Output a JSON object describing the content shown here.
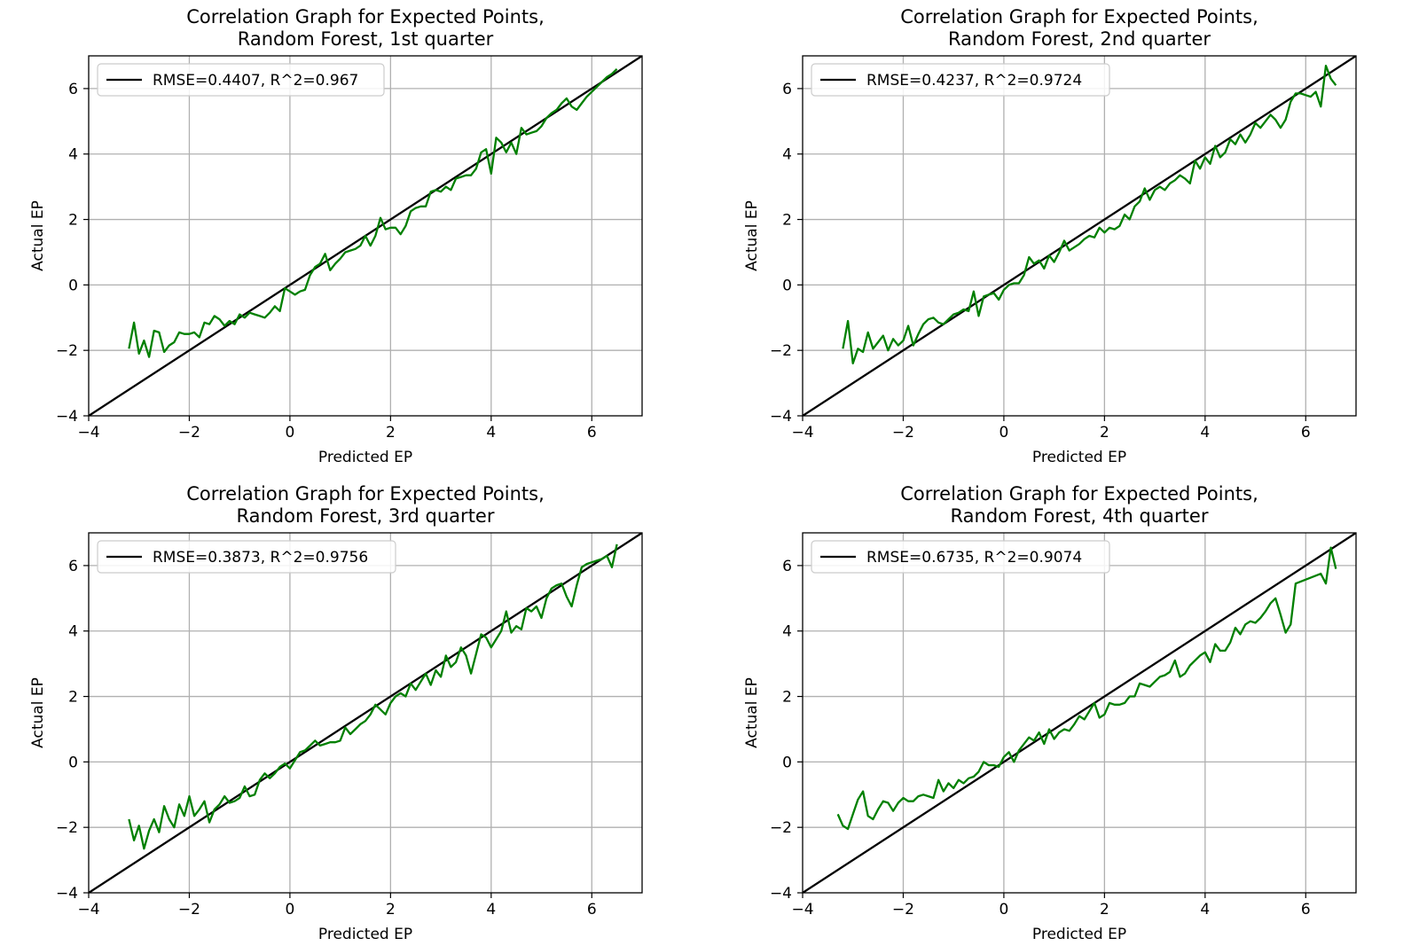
{
  "chart_data": [
    {
      "type": "line",
      "title": "Correlation Graph for Expected Points,\nRandom Forest, 1st quarter",
      "xlabel": "Predicted EP",
      "ylabel": "Actual EP",
      "xlim": [
        -4,
        7
      ],
      "ylim": [
        -4,
        7
      ],
      "xticks": [
        -4,
        -2,
        0,
        2,
        4,
        6
      ],
      "yticks": [
        -4,
        -2,
        0,
        2,
        4,
        6
      ],
      "grid": true,
      "legend_position": "top-left",
      "series": [
        {
          "name": "RMSE=0.4407, R^2=0.967",
          "color": "#000000",
          "role": "reference",
          "x": [
            -4,
            7
          ],
          "y": [
            -4,
            7
          ]
        },
        {
          "color": "#008000",
          "role": "data",
          "x": [
            -3.2,
            -3.1,
            -3.0,
            -2.9,
            -2.8,
            -2.7,
            -2.6,
            -2.5,
            -2.4,
            -2.3,
            -2.2,
            -2.1,
            -2.0,
            -1.9,
            -1.8,
            -1.7,
            -1.6,
            -1.5,
            -1.4,
            -1.3,
            -1.2,
            -1.1,
            -1.0,
            -0.9,
            -0.8,
            -0.7,
            -0.6,
            -0.5,
            -0.4,
            -0.3,
            -0.2,
            -0.1,
            0.0,
            0.1,
            0.2,
            0.3,
            0.4,
            0.5,
            0.6,
            0.7,
            0.8,
            0.9,
            1.0,
            1.1,
            1.2,
            1.3,
            1.4,
            1.5,
            1.6,
            1.7,
            1.8,
            1.9,
            2.0,
            2.1,
            2.2,
            2.3,
            2.4,
            2.5,
            2.6,
            2.7,
            2.8,
            2.9,
            3.0,
            3.1,
            3.2,
            3.3,
            3.4,
            3.5,
            3.6,
            3.7,
            3.8,
            3.9,
            4.0,
            4.1,
            4.2,
            4.3,
            4.4,
            4.5,
            4.6,
            4.7,
            4.8,
            4.9,
            5.0,
            5.1,
            5.2,
            5.3,
            5.4,
            5.5,
            5.6,
            5.7,
            5.8,
            5.9,
            6.0,
            6.1,
            6.2,
            6.3,
            6.4,
            6.5
          ],
          "y": [
            -1.95,
            -1.15,
            -2.1,
            -1.7,
            -2.2,
            -1.4,
            -1.45,
            -2.05,
            -1.85,
            -1.75,
            -1.45,
            -1.5,
            -1.5,
            -1.45,
            -1.6,
            -1.15,
            -1.2,
            -0.95,
            -1.05,
            -1.25,
            -1.1,
            -1.2,
            -0.9,
            -1.0,
            -0.85,
            -0.9,
            -0.95,
            -1.0,
            -0.85,
            -0.65,
            -0.8,
            -0.1,
            -0.2,
            -0.3,
            -0.2,
            -0.15,
            0.3,
            0.55,
            0.65,
            0.95,
            0.45,
            0.65,
            0.8,
            1.0,
            1.05,
            1.1,
            1.2,
            1.5,
            1.2,
            1.5,
            2.05,
            1.7,
            1.75,
            1.75,
            1.55,
            1.8,
            2.25,
            2.35,
            2.4,
            2.4,
            2.85,
            2.9,
            2.85,
            3.0,
            2.9,
            3.25,
            3.3,
            3.35,
            3.35,
            3.55,
            4.05,
            4.15,
            3.4,
            4.5,
            4.35,
            4.05,
            4.35,
            4.0,
            4.8,
            4.6,
            4.65,
            4.7,
            4.85,
            5.1,
            5.25,
            5.35,
            5.55,
            5.7,
            5.45,
            5.35,
            5.55,
            5.75,
            5.9,
            6.05,
            6.2,
            6.35,
            6.45,
            6.6
          ]
        }
      ]
    },
    {
      "type": "line",
      "title": "Correlation Graph for Expected Points,\nRandom Forest, 2nd quarter",
      "xlabel": "Predicted EP",
      "ylabel": "Actual EP",
      "xlim": [
        -4,
        7
      ],
      "ylim": [
        -4,
        7
      ],
      "xticks": [
        -4,
        -2,
        0,
        2,
        4,
        6
      ],
      "yticks": [
        -4,
        -2,
        0,
        2,
        4,
        6
      ],
      "grid": true,
      "legend_position": "top-left",
      "series": [
        {
          "name": "RMSE=0.4237, R^2=0.9724",
          "color": "#000000",
          "role": "reference",
          "x": [
            -4,
            7
          ],
          "y": [
            -4,
            7
          ]
        },
        {
          "color": "#008000",
          "role": "data",
          "x": [
            -3.2,
            -3.1,
            -3.0,
            -2.9,
            -2.8,
            -2.7,
            -2.6,
            -2.5,
            -2.4,
            -2.3,
            -2.2,
            -2.1,
            -2.0,
            -1.9,
            -1.8,
            -1.7,
            -1.6,
            -1.5,
            -1.4,
            -1.3,
            -1.2,
            -1.1,
            -1.0,
            -0.9,
            -0.8,
            -0.7,
            -0.6,
            -0.5,
            -0.4,
            -0.3,
            -0.2,
            -0.1,
            0.0,
            0.1,
            0.2,
            0.3,
            0.4,
            0.5,
            0.6,
            0.7,
            0.8,
            0.9,
            1.0,
            1.1,
            1.2,
            1.3,
            1.4,
            1.5,
            1.6,
            1.7,
            1.8,
            1.9,
            2.0,
            2.1,
            2.2,
            2.3,
            2.4,
            2.5,
            2.6,
            2.7,
            2.8,
            2.9,
            3.0,
            3.1,
            3.2,
            3.3,
            3.4,
            3.5,
            3.6,
            3.7,
            3.8,
            3.9,
            4.0,
            4.1,
            4.2,
            4.3,
            4.4,
            4.5,
            4.6,
            4.7,
            4.8,
            4.9,
            5.0,
            5.1,
            5.2,
            5.3,
            5.4,
            5.5,
            5.6,
            5.7,
            5.8,
            5.9,
            6.0,
            6.1,
            6.2,
            6.3,
            6.4,
            6.5,
            6.6
          ],
          "y": [
            -1.95,
            -1.1,
            -2.4,
            -1.95,
            -2.05,
            -1.45,
            -1.95,
            -1.75,
            -1.55,
            -2.0,
            -1.65,
            -1.85,
            -1.7,
            -1.25,
            -1.85,
            -1.5,
            -1.2,
            -1.05,
            -1.0,
            -1.15,
            -1.2,
            -1.05,
            -0.9,
            -0.85,
            -0.75,
            -0.8,
            -0.2,
            -0.95,
            -0.35,
            -0.3,
            -0.25,
            -0.45,
            -0.15,
            0.0,
            0.05,
            0.05,
            0.3,
            0.85,
            0.65,
            0.75,
            0.5,
            0.9,
            0.7,
            1.0,
            1.35,
            1.05,
            1.15,
            1.25,
            1.4,
            1.5,
            1.45,
            1.75,
            1.6,
            1.75,
            1.7,
            1.8,
            2.15,
            2.0,
            2.4,
            2.55,
            2.95,
            2.6,
            2.9,
            3.0,
            2.9,
            3.1,
            3.2,
            3.35,
            3.25,
            3.1,
            3.8,
            3.55,
            3.9,
            3.7,
            4.25,
            3.9,
            4.05,
            4.45,
            4.3,
            4.6,
            4.35,
            4.6,
            4.95,
            4.8,
            5.0,
            5.2,
            5.05,
            4.8,
            5.05,
            5.6,
            5.85,
            5.85,
            5.8,
            5.75,
            5.9,
            5.45,
            6.7,
            6.3,
            6.1
          ]
        }
      ]
    },
    {
      "type": "line",
      "title": "Correlation Graph for Expected Points,\nRandom Forest, 3rd quarter",
      "xlabel": "Predicted EP",
      "ylabel": "Actual EP",
      "xlim": [
        -4,
        7
      ],
      "ylim": [
        -4,
        7
      ],
      "xticks": [
        -4,
        -2,
        0,
        2,
        4,
        6
      ],
      "yticks": [
        -4,
        -2,
        0,
        2,
        4,
        6
      ],
      "grid": true,
      "legend_position": "top-left",
      "series": [
        {
          "name": "RMSE=0.3873, R^2=0.9756",
          "color": "#000000",
          "role": "reference",
          "x": [
            -4,
            7
          ],
          "y": [
            -4,
            7
          ]
        },
        {
          "color": "#008000",
          "role": "data",
          "x": [
            -3.2,
            -3.1,
            -3.0,
            -2.9,
            -2.8,
            -2.7,
            -2.6,
            -2.5,
            -2.4,
            -2.3,
            -2.2,
            -2.1,
            -2.0,
            -1.9,
            -1.8,
            -1.7,
            -1.6,
            -1.5,
            -1.4,
            -1.3,
            -1.2,
            -1.1,
            -1.0,
            -0.9,
            -0.8,
            -0.7,
            -0.6,
            -0.5,
            -0.4,
            -0.3,
            -0.2,
            -0.1,
            0.0,
            0.1,
            0.2,
            0.3,
            0.4,
            0.5,
            0.6,
            0.7,
            0.8,
            0.9,
            1.0,
            1.1,
            1.2,
            1.3,
            1.4,
            1.5,
            1.6,
            1.7,
            1.8,
            1.9,
            2.0,
            2.1,
            2.2,
            2.3,
            2.4,
            2.5,
            2.6,
            2.7,
            2.8,
            2.9,
            3.0,
            3.1,
            3.2,
            3.3,
            3.4,
            3.5,
            3.6,
            3.7,
            3.8,
            3.9,
            4.0,
            4.1,
            4.2,
            4.3,
            4.4,
            4.5,
            4.6,
            4.7,
            4.8,
            4.9,
            5.0,
            5.1,
            5.2,
            5.3,
            5.4,
            5.5,
            5.6,
            5.7,
            5.8,
            5.9,
            6.0,
            6.1,
            6.2,
            6.3,
            6.4,
            6.5
          ],
          "y": [
            -1.75,
            -2.4,
            -1.95,
            -2.65,
            -2.1,
            -1.75,
            -2.15,
            -1.35,
            -1.75,
            -2.0,
            -1.3,
            -1.65,
            -1.05,
            -1.65,
            -1.45,
            -1.2,
            -1.85,
            -1.45,
            -1.3,
            -1.05,
            -1.25,
            -1.2,
            -1.1,
            -0.75,
            -1.05,
            -1.0,
            -0.55,
            -0.35,
            -0.5,
            -0.35,
            -0.15,
            -0.05,
            -0.2,
            0.05,
            0.3,
            0.35,
            0.5,
            0.65,
            0.5,
            0.55,
            0.6,
            0.6,
            0.65,
            1.05,
            0.85,
            1.0,
            1.15,
            1.25,
            1.45,
            1.75,
            1.6,
            1.45,
            1.8,
            2.0,
            2.1,
            2.0,
            2.4,
            2.2,
            2.45,
            2.7,
            2.35,
            2.8,
            2.6,
            3.25,
            2.9,
            3.05,
            3.5,
            3.25,
            2.7,
            3.3,
            3.9,
            3.8,
            3.5,
            3.75,
            4.0,
            4.6,
            3.95,
            4.15,
            4.05,
            4.7,
            4.6,
            4.75,
            4.4,
            5.0,
            5.3,
            5.4,
            5.45,
            5.05,
            4.75,
            5.4,
            5.95,
            6.05,
            6.1,
            6.15,
            6.2,
            6.3,
            5.95,
            6.65
          ]
        }
      ]
    },
    {
      "type": "line",
      "title": "Correlation Graph for Expected Points,\nRandom Forest, 4th quarter",
      "xlabel": "Predicted EP",
      "ylabel": "Actual EP",
      "xlim": [
        -4,
        7
      ],
      "ylim": [
        -4,
        7
      ],
      "xticks": [
        -4,
        -2,
        0,
        2,
        4,
        6
      ],
      "yticks": [
        -4,
        -2,
        0,
        2,
        4,
        6
      ],
      "grid": true,
      "legend_position": "top-left",
      "series": [
        {
          "name": "RMSE=0.6735, R^2=0.9074",
          "color": "#000000",
          "role": "reference",
          "x": [
            -4,
            7
          ],
          "y": [
            -4,
            7
          ]
        },
        {
          "color": "#008000",
          "role": "data",
          "x": [
            -3.3,
            -3.2,
            -3.1,
            -3.0,
            -2.9,
            -2.8,
            -2.7,
            -2.6,
            -2.5,
            -2.4,
            -2.3,
            -2.2,
            -2.1,
            -2.0,
            -1.9,
            -1.8,
            -1.7,
            -1.6,
            -1.5,
            -1.4,
            -1.3,
            -1.2,
            -1.1,
            -1.0,
            -0.9,
            -0.8,
            -0.7,
            -0.6,
            -0.5,
            -0.4,
            -0.3,
            -0.2,
            -0.1,
            0.0,
            0.1,
            0.2,
            0.3,
            0.4,
            0.5,
            0.6,
            0.7,
            0.8,
            0.9,
            1.0,
            1.1,
            1.2,
            1.3,
            1.4,
            1.5,
            1.6,
            1.7,
            1.8,
            1.9,
            2.0,
            2.1,
            2.2,
            2.3,
            2.4,
            2.5,
            2.6,
            2.7,
            2.8,
            2.9,
            3.0,
            3.1,
            3.2,
            3.3,
            3.4,
            3.5,
            3.6,
            3.7,
            3.8,
            3.9,
            4.0,
            4.1,
            4.2,
            4.3,
            4.4,
            4.5,
            4.6,
            4.7,
            4.8,
            4.9,
            5.0,
            5.1,
            5.2,
            5.3,
            5.4,
            5.5,
            5.6,
            5.7,
            5.8,
            6.3,
            6.4,
            6.5,
            6.6
          ],
          "y": [
            -1.6,
            -1.95,
            -2.05,
            -1.6,
            -1.15,
            -0.9,
            -1.65,
            -1.75,
            -1.45,
            -1.2,
            -1.25,
            -1.5,
            -1.25,
            -1.1,
            -1.2,
            -1.2,
            -1.05,
            -1.0,
            -1.05,
            -1.1,
            -0.55,
            -0.9,
            -0.65,
            -0.8,
            -0.55,
            -0.65,
            -0.5,
            -0.45,
            -0.3,
            0.0,
            -0.1,
            -0.1,
            -0.15,
            0.15,
            0.3,
            0.0,
            0.35,
            0.55,
            0.75,
            0.65,
            0.9,
            0.55,
            1.0,
            0.7,
            0.9,
            1.0,
            0.95,
            1.15,
            1.4,
            1.3,
            1.55,
            1.8,
            1.35,
            1.45,
            1.8,
            1.75,
            1.75,
            1.8,
            2.0,
            2.0,
            2.4,
            2.35,
            2.3,
            2.45,
            2.6,
            2.65,
            2.75,
            3.1,
            2.6,
            2.7,
            2.95,
            3.1,
            3.25,
            3.35,
            3.05,
            3.6,
            3.4,
            3.4,
            3.65,
            4.1,
            3.9,
            4.2,
            4.3,
            4.25,
            4.4,
            4.6,
            4.85,
            5.0,
            4.5,
            3.95,
            4.2,
            5.45,
            5.75,
            5.45,
            6.55,
            5.9
          ]
        }
      ]
    }
  ]
}
